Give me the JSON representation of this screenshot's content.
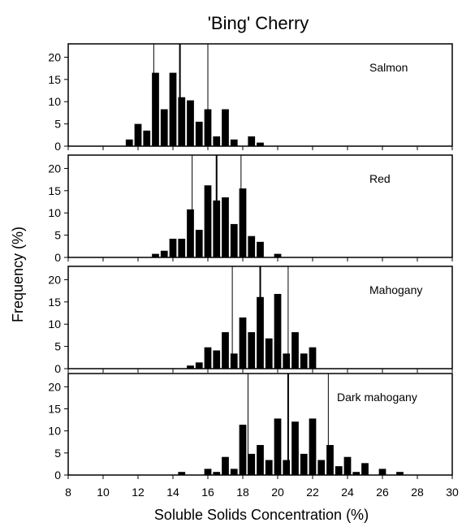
{
  "title": "'Bing' Cherry",
  "xlabel": "Soluble Solids Concentration (%)",
  "ylabel": "Frequency (%)",
  "chart_data": {
    "type": "bar",
    "title": "'Bing' Cherry",
    "xlabel": "Soluble Solids Concentration (%)",
    "ylabel": "Frequency (%)",
    "xlim": [
      8,
      30
    ],
    "xticks": [
      "8",
      "10",
      "12",
      "14",
      "16",
      "18",
      "20",
      "22",
      "24",
      "26",
      "28",
      "30"
    ],
    "ylim": [
      0,
      23
    ],
    "yticks": [
      "0",
      "5",
      "10",
      "15",
      "20"
    ],
    "grid": false,
    "bin_width": 0.5,
    "panels": [
      {
        "label": "Salmon",
        "x": [
          11.5,
          12,
          12.5,
          13,
          13.5,
          14,
          14.5,
          15,
          15.5,
          16,
          16.5,
          17,
          17.5,
          18.5,
          19
        ],
        "values": [
          1.5,
          5,
          3.5,
          16.5,
          8.3,
          16.5,
          11,
          10.3,
          5.5,
          8.3,
          2.2,
          8.3,
          1.5,
          2.2,
          0.8
        ],
        "reference_lines": [
          12.9,
          14.4,
          16
        ]
      },
      {
        "label": "Red",
        "x": [
          13,
          13.5,
          14,
          14.5,
          15,
          15.5,
          16,
          16.5,
          17,
          17.5,
          18,
          18.5,
          19,
          20
        ],
        "values": [
          0.8,
          1.5,
          4.2,
          4.2,
          10.8,
          6.2,
          16.2,
          12.8,
          13.5,
          7.5,
          15.5,
          4.8,
          3.5,
          0.8
        ],
        "reference_lines": [
          15.1,
          16.5,
          17.9
        ]
      },
      {
        "label": "Mahogany",
        "x": [
          15,
          15.5,
          16,
          16.5,
          17,
          17.5,
          18,
          18.5,
          19,
          19.5,
          20,
          20.5,
          21,
          21.5,
          22
        ],
        "values": [
          0.7,
          1.4,
          4.8,
          4.1,
          8.2,
          3.4,
          11.5,
          8.2,
          16.1,
          6.8,
          16.8,
          3.4,
          8.2,
          3.4,
          4.8
        ],
        "reference_lines": [
          17.4,
          19,
          20.6
        ]
      },
      {
        "label": "Dark mahogany",
        "x": [
          14.5,
          16,
          16.5,
          17,
          17.5,
          18,
          18.5,
          19,
          19.5,
          20,
          20.5,
          21,
          21.5,
          22,
          22.5,
          23,
          23.5,
          24,
          24.5,
          25,
          26,
          27
        ],
        "values": [
          0.7,
          1.4,
          0.7,
          4.1,
          1.4,
          11.4,
          4.8,
          6.8,
          3.4,
          12.8,
          3.4,
          12.1,
          4.8,
          12.8,
          3.4,
          6.8,
          2,
          4.1,
          0.7,
          2.7,
          1.4,
          0.7
        ],
        "reference_lines": [
          18.3,
          20.6,
          22.9
        ]
      }
    ]
  }
}
